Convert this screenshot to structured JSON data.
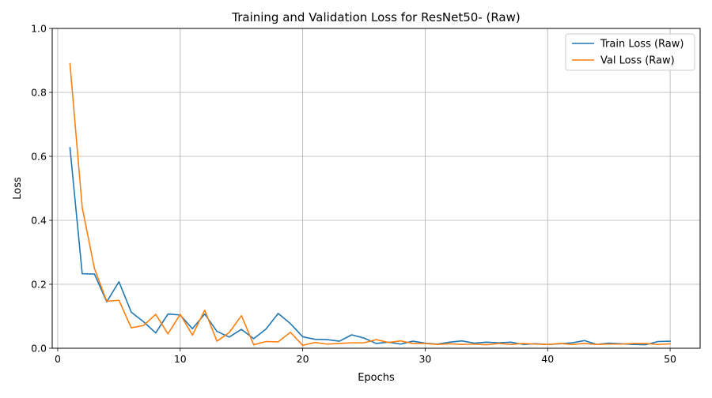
{
  "chart_data": {
    "type": "line",
    "title": "Training and Validation Loss for ResNet50- (Raw)",
    "xlabel": "Epochs",
    "ylabel": "Loss",
    "xlim": [
      -0.45,
      52.45
    ],
    "ylim": [
      0,
      1.0
    ],
    "xticks": [
      0,
      10,
      20,
      30,
      40,
      50
    ],
    "yticks": [
      0.0,
      0.2,
      0.4,
      0.6,
      0.8,
      1.0
    ],
    "xtick_labels": [
      "0",
      "10",
      "20",
      "30",
      "40",
      "50"
    ],
    "ytick_labels": [
      "0.0",
      "0.2",
      "0.4",
      "0.6",
      "0.8",
      "1.0"
    ],
    "grid": true,
    "legend": "top-right",
    "x": [
      1,
      2,
      3,
      4,
      5,
      6,
      7,
      8,
      9,
      10,
      11,
      12,
      13,
      14,
      15,
      16,
      17,
      18,
      19,
      20,
      21,
      22,
      23,
      24,
      25,
      26,
      27,
      28,
      29,
      30,
      31,
      32,
      33,
      34,
      35,
      36,
      37,
      38,
      39,
      40,
      41,
      42,
      43,
      44,
      45,
      46,
      47,
      48,
      49,
      50
    ],
    "series": [
      {
        "name": "Train Loss (Raw)",
        "color": "#1f77b4",
        "values": [
          0.627,
          0.233,
          0.232,
          0.145,
          0.208,
          0.113,
          0.083,
          0.048,
          0.107,
          0.104,
          0.061,
          0.107,
          0.053,
          0.035,
          0.059,
          0.03,
          0.06,
          0.109,
          0.077,
          0.036,
          0.028,
          0.027,
          0.022,
          0.042,
          0.032,
          0.015,
          0.019,
          0.013,
          0.022,
          0.016,
          0.013,
          0.019,
          0.023,
          0.016,
          0.019,
          0.017,
          0.019,
          0.012,
          0.014,
          0.012,
          0.014,
          0.017,
          0.024,
          0.012,
          0.016,
          0.014,
          0.012,
          0.011,
          0.021,
          0.022
        ]
      },
      {
        "name": "Val Loss (Raw)",
        "color": "#ff7f0e",
        "values": [
          0.89,
          0.44,
          0.249,
          0.147,
          0.15,
          0.064,
          0.071,
          0.106,
          0.045,
          0.106,
          0.041,
          0.119,
          0.022,
          0.049,
          0.102,
          0.011,
          0.021,
          0.02,
          0.05,
          0.009,
          0.018,
          0.013,
          0.015,
          0.017,
          0.017,
          0.027,
          0.018,
          0.023,
          0.015,
          0.015,
          0.012,
          0.014,
          0.012,
          0.013,
          0.011,
          0.015,
          0.012,
          0.015,
          0.013,
          0.012,
          0.015,
          0.012,
          0.015,
          0.012,
          0.013,
          0.013,
          0.015,
          0.015,
          0.012,
          0.014
        ]
      }
    ]
  }
}
